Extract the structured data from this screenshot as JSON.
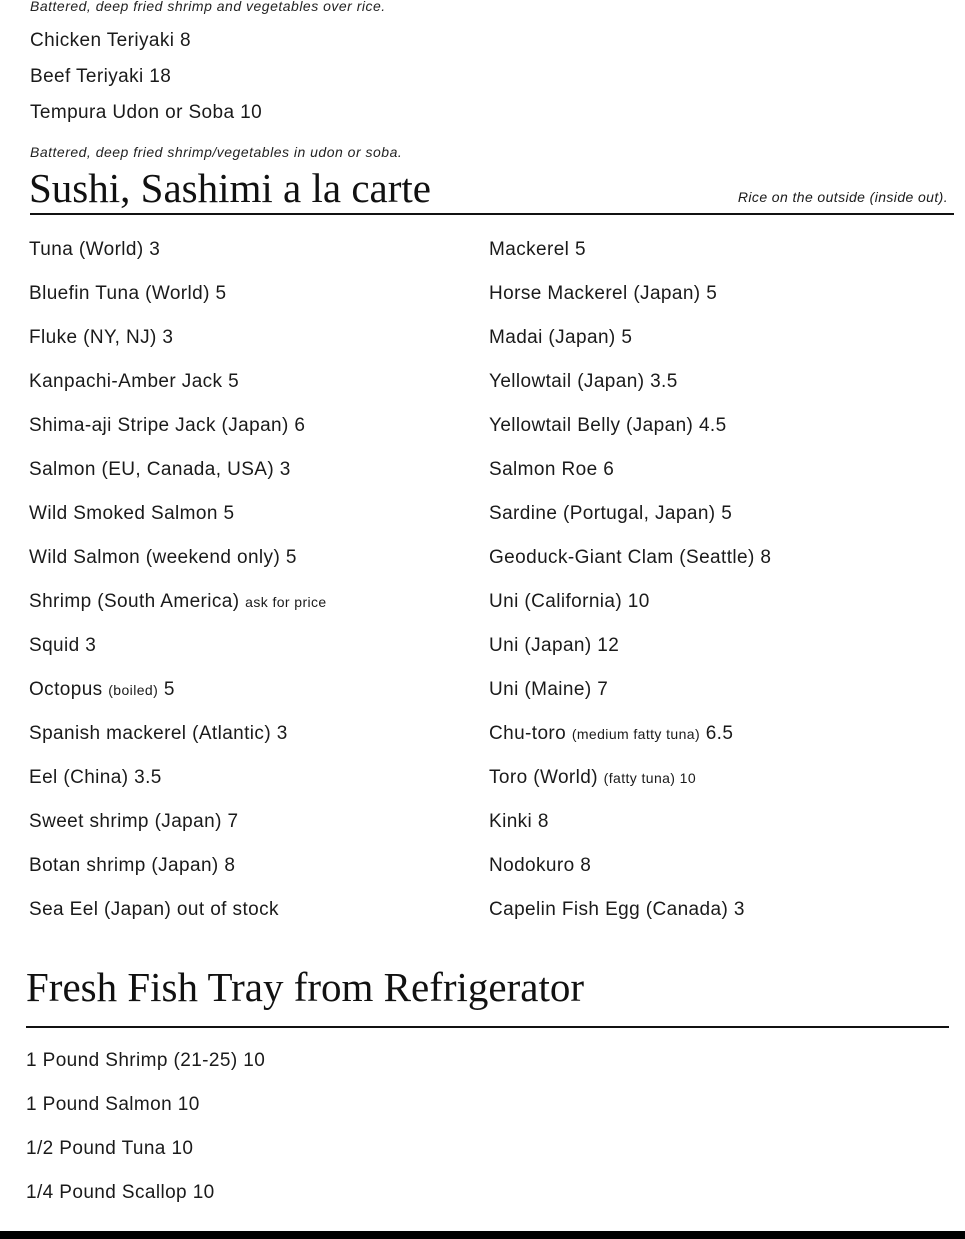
{
  "top": {
    "desc1": "Battered, deep fried shrimp and vegetables over rice.",
    "items": [
      "Chicken Teriyaki 8",
      "Beef Teriyaki 18",
      "Tempura Udon or Soba 10"
    ],
    "desc2": "Battered, deep fried shrimp/vegetables in udon or soba."
  },
  "sushi": {
    "title": "Sushi, Sashimi a la carte",
    "aside": "Rice on the outside (inside out).",
    "left": [
      {
        "name": "Tuna (World) 3"
      },
      {
        "name": "Bluefin Tuna (World) 5"
      },
      {
        "name": "Fluke (NY, NJ) 3"
      },
      {
        "name": "Kanpachi-Amber Jack 5"
      },
      {
        "name": "Shima-aji Stripe Jack (Japan) 6"
      },
      {
        "name": "Salmon (EU, Canada, USA) 3"
      },
      {
        "name": "Wild Smoked Salmon 5"
      },
      {
        "name": "Wild Salmon (weekend only) 5"
      },
      {
        "name": "Shrimp (South America)",
        "note": "ask for price",
        "price": ""
      },
      {
        "name": "Squid 3"
      },
      {
        "name": "Octopus",
        "note": "(boiled)",
        "price": "5"
      },
      {
        "name": "Spanish mackerel (Atlantic) 3"
      },
      {
        "name": "Eel (China) 3.5"
      },
      {
        "name": "Sweet shrimp (Japan) 7"
      },
      {
        "name": "Botan shrimp (Japan) 8"
      },
      {
        "name": "Sea Eel (Japan) out of stock"
      }
    ],
    "right": [
      {
        "name": "Mackerel 5"
      },
      {
        "name": "Horse Mackerel (Japan) 5"
      },
      {
        "name": "Madai (Japan) 5"
      },
      {
        "name": "Yellowtail (Japan) 3.5"
      },
      {
        "name": "Yellowtail Belly (Japan) 4.5"
      },
      {
        "name": "Salmon Roe 6"
      },
      {
        "name": "Sardine (Portugal, Japan) 5"
      },
      {
        "name": "Geoduck-Giant Clam (Seattle) 8"
      },
      {
        "name": "Uni (California) 10"
      },
      {
        "name": "Uni (Japan) 12"
      },
      {
        "name": "Uni (Maine) 7"
      },
      {
        "name": "Chu-toro",
        "note": "(medium fatty tuna)",
        "price": "6.5"
      },
      {
        "name": "Toro (World)",
        "note": "(fatty tuna) 10",
        "price": ""
      },
      {
        "name": "Kinki 8"
      },
      {
        "name": "Nodokuro 8"
      },
      {
        "name": "Capelin Fish Egg (Canada) 3"
      }
    ]
  },
  "tray": {
    "title": "Fresh Fish Tray from Refrigerator",
    "items": [
      "1 Pound Shrimp (21-25) 10",
      "1 Pound Salmon 10",
      "1/2 Pound Tuna 10",
      "1/4 Pound Scallop 10"
    ]
  }
}
